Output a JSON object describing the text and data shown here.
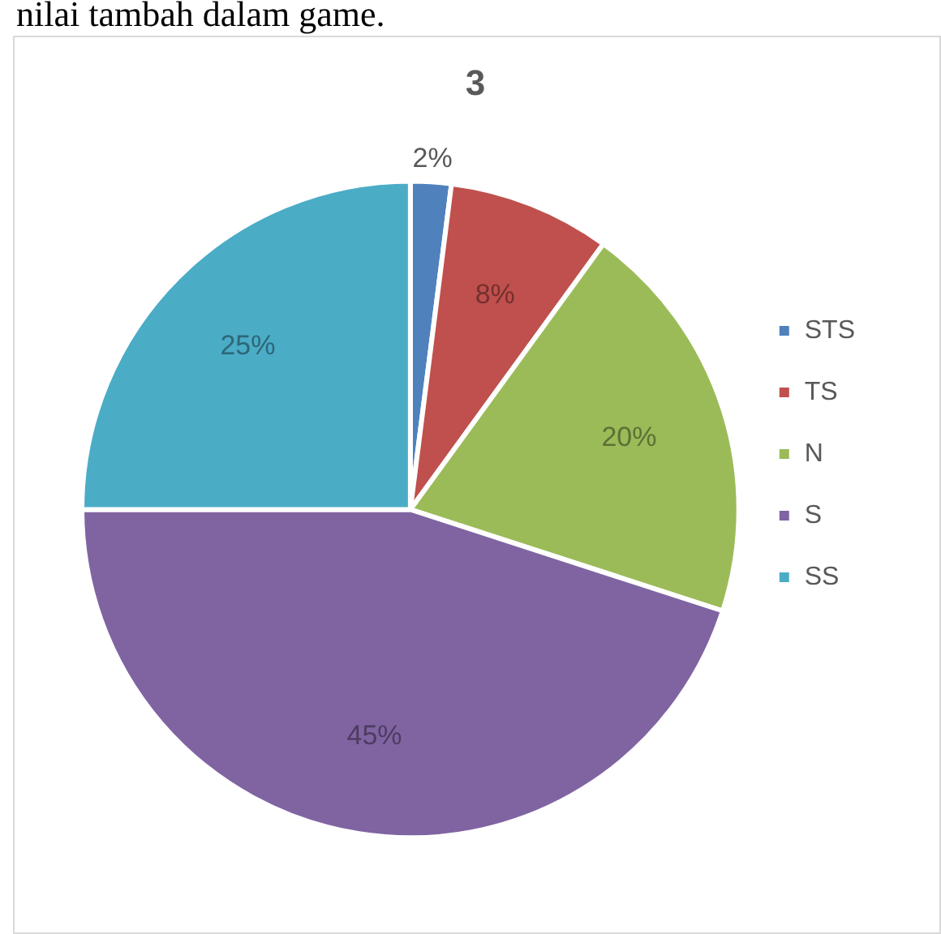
{
  "chart_data": {
    "type": "pie",
    "title": "3",
    "annotations": [
      "nilai tambah dalam game."
    ],
    "categories": [
      "STS",
      "TS",
      "N",
      "S",
      "SS"
    ],
    "values": [
      2,
      8,
      20,
      45,
      25
    ],
    "value_labels": [
      "2%",
      "8%",
      "20%",
      "45%",
      "25%"
    ],
    "colors": [
      "#4f81bd",
      "#c0504d",
      "#9bbb59",
      "#8064a2",
      "#4bacc6"
    ],
    "legend": "right"
  }
}
